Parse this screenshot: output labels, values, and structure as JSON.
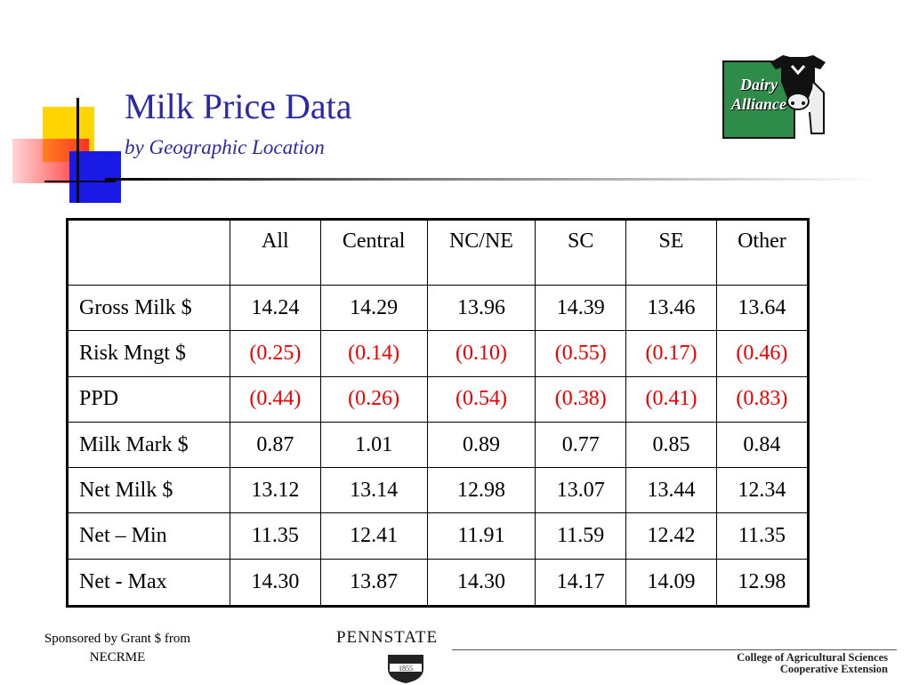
{
  "title": "Milk Price Data",
  "subtitle": "by Geographic Location",
  "logo": {
    "line1": "Dairy",
    "line2": "Alliance"
  },
  "table": {
    "headers": [
      "",
      "All",
      "Central",
      "NC/NE",
      "SC",
      "SE",
      "Other"
    ],
    "rows": [
      {
        "label": "Gross Milk $",
        "values": [
          "14.24",
          "14.29",
          "13.96",
          "14.39",
          "13.46",
          "13.64"
        ],
        "negative": false
      },
      {
        "label": "Risk Mngt $",
        "values": [
          "(0.25)",
          "(0.14)",
          "(0.10)",
          "(0.55)",
          "(0.17)",
          "(0.46)"
        ],
        "negative": true
      },
      {
        "label": "PPD",
        "values": [
          "(0.44)",
          "(0.26)",
          "(0.54)",
          "(0.38)",
          "(0.41)",
          "(0.83)"
        ],
        "negative": true
      },
      {
        "label": "Milk Mark $",
        "values": [
          "0.87",
          "1.01",
          "0.89",
          "0.77",
          "0.85",
          "0.84"
        ],
        "negative": false
      },
      {
        "label": "Net Milk $",
        "values": [
          "13.12",
          "13.14",
          "12.98",
          "13.07",
          "13.44",
          "12.34"
        ],
        "negative": false
      },
      {
        "label": "Net – Min",
        "values": [
          "11.35",
          "12.41",
          "11.91",
          "11.59",
          "12.42",
          "11.35"
        ],
        "negative": false
      },
      {
        "label": "Net - Max",
        "values": [
          "14.30",
          "13.87",
          "14.30",
          "14.17",
          "14.09",
          "12.98"
        ],
        "negative": false
      }
    ]
  },
  "sponsor": {
    "line1": "Sponsored by Grant $ from",
    "line2": "NECRME"
  },
  "pennstate": {
    "word": "PENNSTATE",
    "year": "1855"
  },
  "college": {
    "line1": "College of Agricultural Sciences",
    "line2": "Cooperative Extension"
  },
  "colors": {
    "title": "#2a2aa6",
    "negative": "#ee0000",
    "logo_green": "#2e8b4a"
  }
}
